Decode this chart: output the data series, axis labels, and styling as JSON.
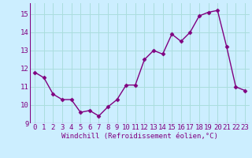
{
  "x": [
    0,
    1,
    2,
    3,
    4,
    5,
    6,
    7,
    8,
    9,
    10,
    11,
    12,
    13,
    14,
    15,
    16,
    17,
    18,
    19,
    20,
    21,
    22,
    23
  ],
  "y": [
    11.8,
    11.5,
    10.6,
    10.3,
    10.3,
    9.6,
    9.7,
    9.4,
    9.9,
    10.3,
    11.1,
    11.1,
    12.5,
    13.0,
    12.8,
    13.9,
    13.5,
    14.0,
    14.9,
    15.1,
    15.2,
    13.2,
    11.0,
    10.8
  ],
  "xlabel": "Windchill (Refroidissement éolien,°C)",
  "ylabel": "",
  "ylim": [
    9.0,
    15.6
  ],
  "xlim": [
    -0.5,
    23.5
  ],
  "yticks": [
    9,
    10,
    11,
    12,
    13,
    14,
    15
  ],
  "xticks": [
    0,
    1,
    2,
    3,
    4,
    5,
    6,
    7,
    8,
    9,
    10,
    11,
    12,
    13,
    14,
    15,
    16,
    17,
    18,
    19,
    20,
    21,
    22,
    23
  ],
  "line_color": "#800080",
  "marker": "D",
  "marker_size": 2.5,
  "bg_color": "#cceeff",
  "grid_color": "#aadddd",
  "label_color": "#800080",
  "xlabel_fontsize": 6.5,
  "tick_fontsize": 6.5,
  "linewidth": 1.0
}
